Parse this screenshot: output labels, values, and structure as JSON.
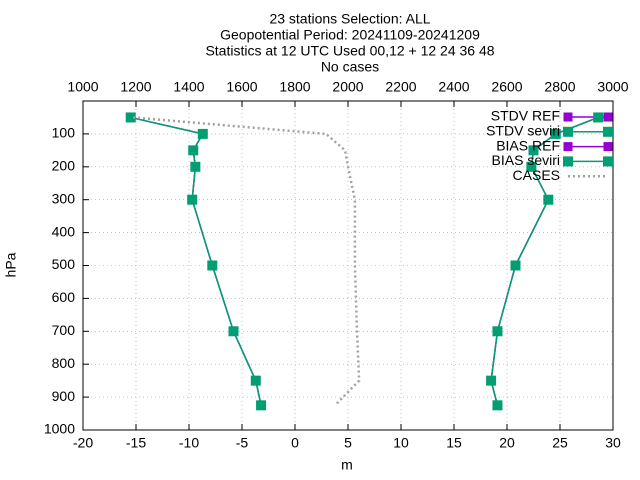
{
  "chart_data": {
    "type": "line",
    "title": [
      "23 stations Selection: ALL",
      "Geopotential  Period: 20241109-20241209",
      "Statistics at 12 UTC  Used 00,12 + 12 24 36 48",
      "No cases"
    ],
    "xlabel": "m",
    "ylabel": "hPa",
    "xlim": [
      -20,
      30
    ],
    "xticks": [
      -20,
      -15,
      -10,
      -5,
      0,
      5,
      10,
      15,
      20,
      25,
      30
    ],
    "x2lim": [
      1000,
      3000
    ],
    "x2ticks": [
      1000,
      1200,
      1400,
      1600,
      1800,
      2000,
      2200,
      2400,
      2600,
      2800,
      3000
    ],
    "ylim": [
      1000,
      0
    ],
    "yticks": [
      100,
      200,
      300,
      400,
      500,
      600,
      700,
      800,
      900,
      1000
    ],
    "grid": true,
    "legend": "top-right",
    "y": [
      50,
      100,
      150,
      200,
      300,
      500,
      700,
      850,
      925
    ],
    "series": [
      {
        "name": "STDV REF",
        "color": "#9400d3",
        "values": [
          28.6,
          24.6,
          22.5,
          22.3,
          23.9,
          20.8,
          19.1,
          18.5,
          19.1
        ]
      },
      {
        "name": "STDV seviri",
        "color": "#009e73",
        "values": [
          28.6,
          24.6,
          22.5,
          22.3,
          23.9,
          20.8,
          19.1,
          18.5,
          19.1
        ]
      },
      {
        "name": "BIAS REF",
        "color": "#9400d3",
        "values": [
          -15.5,
          -8.7,
          -9.6,
          -9.4,
          -9.7,
          -7.8,
          -5.8,
          -3.7,
          -3.2
        ]
      },
      {
        "name": "BIAS seviri",
        "color": "#009e73",
        "values": [
          -15.5,
          -8.7,
          -9.6,
          -9.4,
          -9.7,
          -7.8,
          -5.8,
          -3.7,
          -3.2
        ]
      },
      {
        "name": "CASES",
        "color": "#a0a0a0",
        "axis": "x2",
        "values": [
          1189,
          1917,
          1989,
          2000,
          2026,
          2026,
          2034,
          2042,
          1951
        ]
      }
    ]
  }
}
